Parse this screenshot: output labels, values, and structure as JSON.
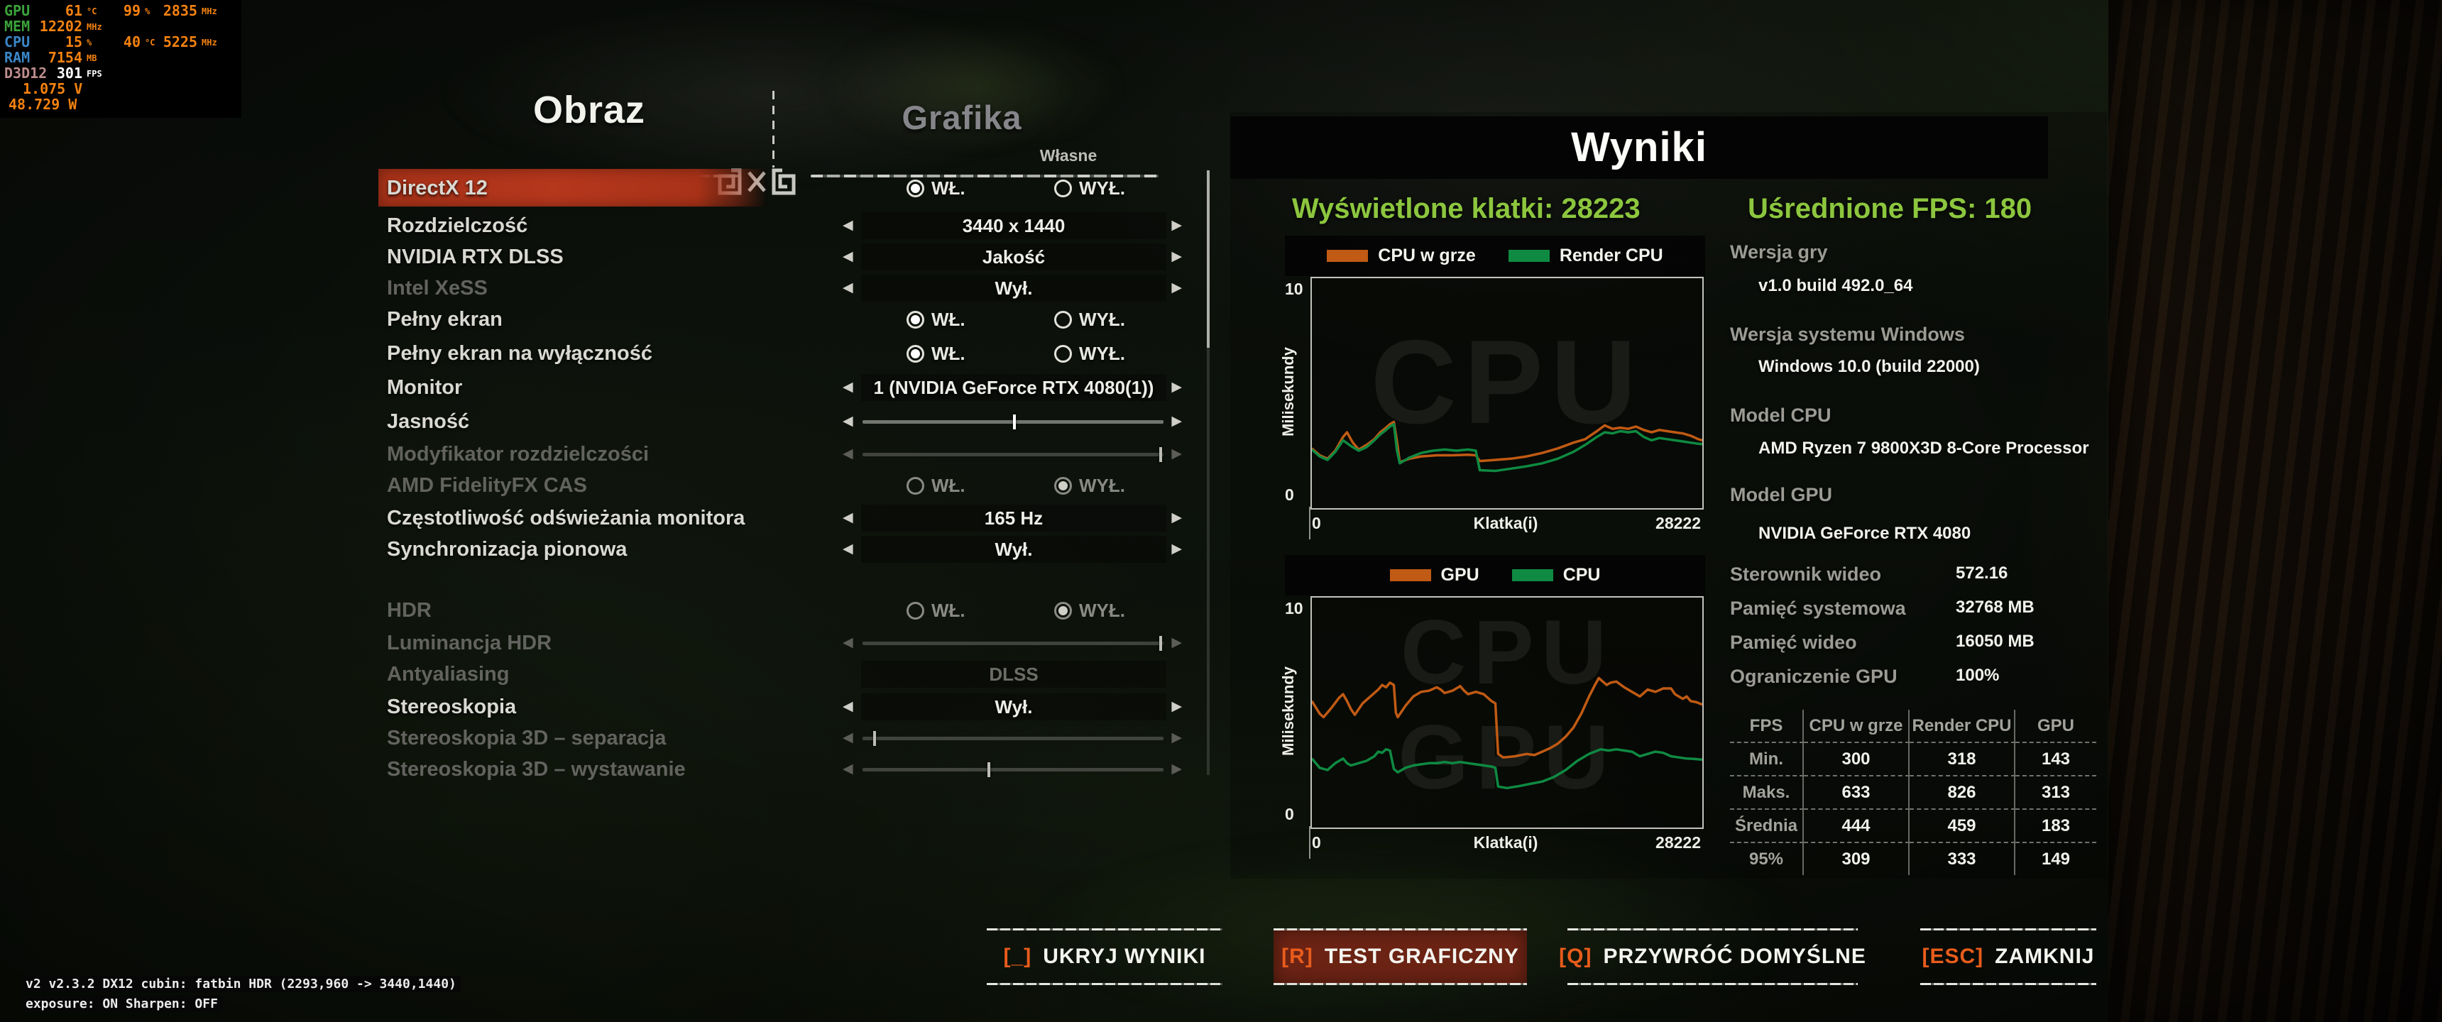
{
  "overlay": {
    "rows": [
      {
        "label": "GPU",
        "color": "green",
        "cols": [
          {
            "v": "61",
            "u": "°C"
          },
          {
            "v": "99",
            "u": "%"
          },
          {
            "v": "2835",
            "u": "MHz"
          }
        ]
      },
      {
        "label": "MEM",
        "color": "green",
        "cols": [
          {
            "v": "12202",
            "u": "MHz"
          }
        ]
      },
      {
        "label": "CPU",
        "color": "blue",
        "cols": [
          {
            "v": "15",
            "u": "%"
          },
          {
            "v": "40",
            "u": "°C"
          },
          {
            "v": "5225",
            "u": "MHz"
          }
        ]
      },
      {
        "label": "RAM",
        "color": "blue",
        "cols": [
          {
            "v": "7154",
            "u": "MB"
          }
        ]
      },
      {
        "label": "D3D12",
        "color": "rose",
        "value_white": true,
        "cols": [
          {
            "v": "301",
            "u": "FPS"
          }
        ]
      }
    ],
    "extra_rows": [
      {
        "text": "1.075 V",
        "indent": 28
      },
      {
        "text": "48.729 W",
        "indent": 8
      }
    ]
  },
  "menu": {
    "tab_active": "Obraz",
    "tab_inactive": "Grafika",
    "preset_label": "Własne",
    "radio_on": "WŁ.",
    "radio_off": "WYŁ.",
    "rows": [
      {
        "label": "DirectX 12",
        "type": "radio",
        "selected": "on",
        "highlight": true
      },
      {
        "label": "Rozdzielczość",
        "type": "choice",
        "value": "3440 x 1440"
      },
      {
        "label": "NVIDIA RTX DLSS",
        "type": "choice",
        "value": "Jakość"
      },
      {
        "label": "Intel XeSS",
        "type": "choice",
        "value": "Wył.",
        "label_dim": true
      },
      {
        "label": "Pełny ekran",
        "type": "radio",
        "selected": "on"
      },
      {
        "label": "Pełny ekran na wyłączność",
        "type": "radio",
        "selected": "on"
      },
      {
        "label": "Monitor",
        "type": "choice",
        "value": "1 (NVIDIA GeForce RTX 4080(1))"
      },
      {
        "label": "Jasność",
        "type": "slider",
        "pos": 0.505
      },
      {
        "label": "Modyfikator rozdzielczości",
        "type": "slider",
        "pos": 0.99,
        "label_dim": true,
        "value_dim": true
      },
      {
        "label": "AMD FidelityFX CAS",
        "type": "radio",
        "selected": "off",
        "label_dim": true,
        "value_dim": true
      },
      {
        "label": "Częstotliwość odświeżania monitora",
        "type": "choice",
        "value": "165 Hz"
      },
      {
        "label": "Synchronizacja pionowa",
        "type": "choice",
        "value": "Wył."
      },
      {
        "label": "HDR",
        "type": "radio",
        "selected": "off",
        "label_dim": true,
        "value_dim": true
      },
      {
        "label": "Luminancja HDR",
        "type": "slider",
        "pos": 0.99,
        "label_dim": true,
        "value_dim": true
      },
      {
        "label": "Antyaliasing",
        "type": "text",
        "value": "DLSS",
        "label_dim": true,
        "value_dim": true
      },
      {
        "label": "Stereoskopia",
        "type": "choice",
        "value": "Wył."
      },
      {
        "label": "Stereoskopia 3D – separacja",
        "type": "slider",
        "pos": 0.04,
        "label_dim": true,
        "value_dim": true
      },
      {
        "label": "Stereoskopia 3D – wystawanie",
        "type": "slider",
        "pos": 0.42,
        "label_dim": true,
        "value_dim": true
      }
    ]
  },
  "results": {
    "title": "Wyniki",
    "frames_caption": "Wyświetlone klatki:",
    "frames_value": "28223",
    "avg_caption": "Uśrednione FPS:",
    "avg_value": "180",
    "accent_green": "#8cc63e"
  },
  "chart_data": [
    {
      "type": "line",
      "ylabel": "Milisekundy",
      "xlabel": "Klatka(i)",
      "ylim": [
        0,
        10
      ],
      "xlim": [
        0,
        28222
      ],
      "y_tick_labels": [
        "10",
        "0"
      ],
      "x_tick_labels": [
        "0",
        "28222"
      ],
      "legend_position": "top",
      "grid": false,
      "watermarks": [
        "CPU"
      ],
      "series": [
        {
          "name": "CPU w grze",
          "color": "#c05a14",
          "x": [
            0,
            564,
            1129,
            1693,
            2258,
            2540,
            2963,
            3387,
            3951,
            4516,
            4939,
            5362,
            5644,
            5927,
            6152,
            6350,
            7056,
            7902,
            9031,
            10160,
            11289,
            11853,
            12136,
            13264,
            14393,
            15522,
            16651,
            17780,
            18909,
            19755,
            20602,
            21167,
            21731,
            22295,
            22860,
            23424,
            23989,
            24553,
            25118,
            25682,
            26246,
            26811,
            27375,
            27940,
            28222
          ],
          "y": [
            2.6,
            2.3,
            2.15,
            2.5,
            3.1,
            3.3,
            2.85,
            2.55,
            2.75,
            3.0,
            3.3,
            3.5,
            3.65,
            3.75,
            2.9,
            2.0,
            2.15,
            2.25,
            2.3,
            2.3,
            2.32,
            2.3,
            2.05,
            2.1,
            2.15,
            2.25,
            2.4,
            2.6,
            2.85,
            3.0,
            3.35,
            3.6,
            3.45,
            3.5,
            3.45,
            3.55,
            3.4,
            3.3,
            3.4,
            3.35,
            3.3,
            3.25,
            3.15,
            3.0,
            2.95
          ]
        },
        {
          "name": "Render CPU",
          "color": "#0f8a42",
          "x": [
            0,
            564,
            1129,
            1693,
            2258,
            2822,
            3387,
            3951,
            4516,
            4939,
            5362,
            5644,
            5927,
            6152,
            6350,
            7056,
            7902,
            8749,
            9595,
            10442,
            11289,
            11853,
            12136,
            13264,
            14393,
            15522,
            16651,
            17780,
            18909,
            19755,
            20602,
            21167,
            21731,
            22295,
            22860,
            23424,
            23989,
            24553,
            25118,
            25682,
            26246,
            26811,
            27375,
            27940,
            28222
          ],
          "y": [
            2.55,
            2.25,
            2.1,
            2.45,
            2.95,
            2.7,
            2.5,
            2.65,
            2.95,
            3.2,
            3.4,
            3.55,
            3.65,
            2.5,
            1.95,
            2.2,
            2.4,
            2.5,
            2.55,
            2.5,
            2.55,
            2.5,
            1.65,
            1.62,
            1.72,
            1.82,
            1.95,
            2.15,
            2.45,
            2.75,
            3.1,
            3.3,
            3.25,
            3.35,
            3.3,
            3.35,
            3.1,
            2.95,
            3.05,
            3.0,
            2.95,
            2.9,
            2.85,
            2.8,
            2.78
          ]
        }
      ]
    },
    {
      "type": "line",
      "ylabel": "Milisekundy",
      "xlabel": "Klatka(i)",
      "ylim": [
        0,
        10
      ],
      "xlim": [
        0,
        28222
      ],
      "y_tick_labels": [
        "10",
        "0"
      ],
      "x_tick_labels": [
        "0",
        "28222"
      ],
      "legend_position": "top",
      "grid": false,
      "watermarks": [
        "CPU",
        "GPU"
      ],
      "series": [
        {
          "name": "GPU",
          "color": "#c05a14",
          "x": [
            0,
            564,
            847,
            1411,
            1975,
            2258,
            2540,
            2822,
            3104,
            3669,
            4233,
            4798,
            5080,
            5362,
            5644,
            5927,
            6068,
            6209,
            6773,
            7338,
            7902,
            8466,
            9031,
            9313,
            9595,
            10160,
            10724,
            11006,
            11289,
            11853,
            12418,
            12700,
            12982,
            13264,
            13463,
            13829,
            14675,
            15522,
            16086,
            16651,
            17215,
            17780,
            18344,
            18909,
            19473,
            20038,
            20461,
            20743,
            21026,
            21308,
            21590,
            22013,
            22577,
            23142,
            23706,
            23989,
            24271,
            24835,
            25400,
            25964,
            26246,
            26811,
            27093,
            27375,
            27798,
            28222
          ],
          "y": [
            5.5,
            4.95,
            4.8,
            5.2,
            5.65,
            5.8,
            5.5,
            5.15,
            4.9,
            5.4,
            5.7,
            6.0,
            6.2,
            6.1,
            6.3,
            6.2,
            5.0,
            4.8,
            5.3,
            5.7,
            5.9,
            5.95,
            6.1,
            6.0,
            5.85,
            5.95,
            6.15,
            5.95,
            5.8,
            5.9,
            5.8,
            5.65,
            5.5,
            5.4,
            3.2,
            3.05,
            3.1,
            3.2,
            3.15,
            3.3,
            3.45,
            3.65,
            3.95,
            4.35,
            4.95,
            5.7,
            6.2,
            6.5,
            6.35,
            6.2,
            6.3,
            6.35,
            6.1,
            5.9,
            5.7,
            5.85,
            6.0,
            5.9,
            6.05,
            6.05,
            5.8,
            5.6,
            5.7,
            5.5,
            5.45,
            5.35
          ]
        },
        {
          "name": "CPU",
          "color": "#0f8a42",
          "x": [
            0,
            564,
            1129,
            1693,
            2258,
            2540,
            2822,
            3387,
            3951,
            4516,
            4798,
            5080,
            5362,
            5644,
            5927,
            6209,
            6773,
            7338,
            7902,
            8466,
            9031,
            9595,
            10160,
            10724,
            11289,
            11853,
            12418,
            12982,
            13264,
            13463,
            14111,
            14957,
            15804,
            16651,
            17497,
            18344,
            19191,
            20038,
            20884,
            21449,
            22013,
            22577,
            23142,
            23706,
            24271,
            24835,
            25400,
            25964,
            26528,
            27093,
            27657,
            28222
          ],
          "y": [
            3.0,
            2.6,
            2.5,
            2.8,
            3.0,
            2.8,
            2.7,
            2.8,
            2.9,
            3.1,
            3.3,
            3.25,
            3.4,
            3.35,
            2.55,
            2.4,
            2.6,
            2.7,
            2.75,
            2.8,
            2.8,
            2.85,
            2.8,
            2.85,
            2.8,
            2.75,
            2.7,
            2.65,
            2.6,
            1.78,
            1.72,
            1.8,
            1.9,
            2.0,
            2.2,
            2.5,
            2.9,
            3.2,
            3.4,
            3.35,
            3.4,
            3.35,
            3.3,
            3.1,
            3.2,
            3.3,
            3.25,
            3.1,
            3.05,
            3.0,
            2.98,
            2.95
          ]
        }
      ]
    }
  ],
  "sysinfo": {
    "blocks": [
      {
        "label": "Wersja gry",
        "value": "v1.0 build 492.0_64"
      },
      {
        "label": "Wersja systemu Windows",
        "value": "Windows 10.0 (build 22000)"
      },
      {
        "label": "Model CPU",
        "value": "AMD Ryzen 7 9800X3D 8-Core Processor"
      },
      {
        "label": "Model GPU",
        "value": "NVIDIA GeForce RTX 4080"
      }
    ],
    "pairs": [
      {
        "label": "Sterownik wideo",
        "value": "572.16"
      },
      {
        "label": "Pamięć systemowa",
        "value": "32768 MB"
      },
      {
        "label": "Pamięć wideo",
        "value": "16050 MB"
      },
      {
        "label": "Ograniczenie GPU",
        "value": "100%"
      }
    ]
  },
  "fps_table": {
    "headers": [
      "FPS",
      "CPU w grze",
      "Render CPU",
      "GPU"
    ],
    "rows": [
      {
        "label": "Min.",
        "values": [
          "300",
          "318",
          "143"
        ]
      },
      {
        "label": "Maks.",
        "values": [
          "633",
          "826",
          "313"
        ]
      },
      {
        "label": "Średnia",
        "values": [
          "444",
          "459",
          "183"
        ]
      },
      {
        "label": "95%",
        "values": [
          "309",
          "333",
          "149"
        ]
      }
    ]
  },
  "buttons": [
    {
      "key": "[_]",
      "label": "UKRYJ WYNIKI",
      "highlighted": false
    },
    {
      "key": "[R]",
      "label": "TEST GRAFICZNY",
      "highlighted": true
    },
    {
      "key": "[Q]",
      "label": "PRZYWRÓĆ DOMYŚLNE",
      "highlighted": false
    },
    {
      "key": "[ESC]",
      "label": "ZAMKNIJ",
      "highlighted": false
    }
  ],
  "debug": {
    "line1": "v2 v2.3.2 DX12 cubin: fatbin HDR (2293,960 -> 3440,1440)",
    "line2": "exposure: ON Sharpen: OFF"
  },
  "colors": {
    "accent_orange": "#e85c1c",
    "highlight_red": "#b5371c",
    "button_red_bg": "#6b2314",
    "result_green": "#8cc63e",
    "chart_orange": "#c05a14",
    "chart_green": "#0f8a42"
  }
}
